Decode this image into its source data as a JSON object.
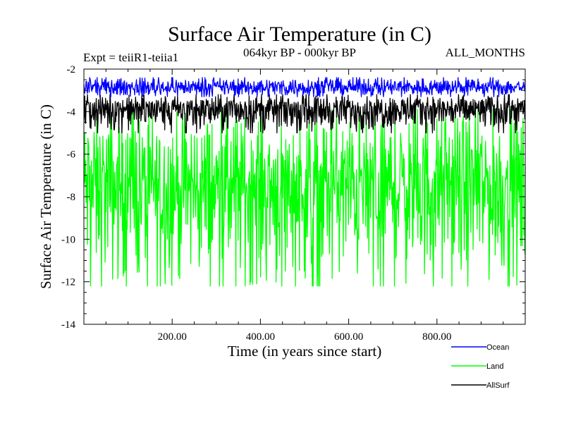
{
  "chart_data": {
    "type": "line",
    "title": "Surface Air Temperature (in C)",
    "subtitle_left": "Expt = teiiR1-teiia1",
    "subtitle_center": "064kyr BP - 000kyr BP",
    "subtitle_right": "ALL_MONTHS",
    "xlabel": "Time (in years since start)",
    "ylabel": "Surface Air Temperature (in C)",
    "xlim": [
      0,
      1000
    ],
    "ylim": [
      -14,
      -2
    ],
    "x_ticks": [
      200,
      400,
      600,
      800
    ],
    "x_tick_labels": [
      "200.00",
      "400.00",
      "600.00",
      "800.00"
    ],
    "y_ticks": [
      -2,
      -4,
      -6,
      -8,
      -10,
      -12,
      -14
    ],
    "y_tick_labels": [
      "-2",
      "-4",
      "-6",
      "-8",
      "-10",
      "-12",
      "-14"
    ],
    "legend_position": "bottom-right",
    "series": [
      {
        "name": "Ocean",
        "color": "#0000ff",
        "mean": -2.85,
        "min": -3.3,
        "max": -2.4
      },
      {
        "name": "Land",
        "color": "#00ff00",
        "mean": -7.5,
        "min": -12.2,
        "max": -3.9
      },
      {
        "name": "AllSurf",
        "color": "#000000",
        "mean": -3.85,
        "min": -5.0,
        "max": -3.2
      }
    ]
  }
}
